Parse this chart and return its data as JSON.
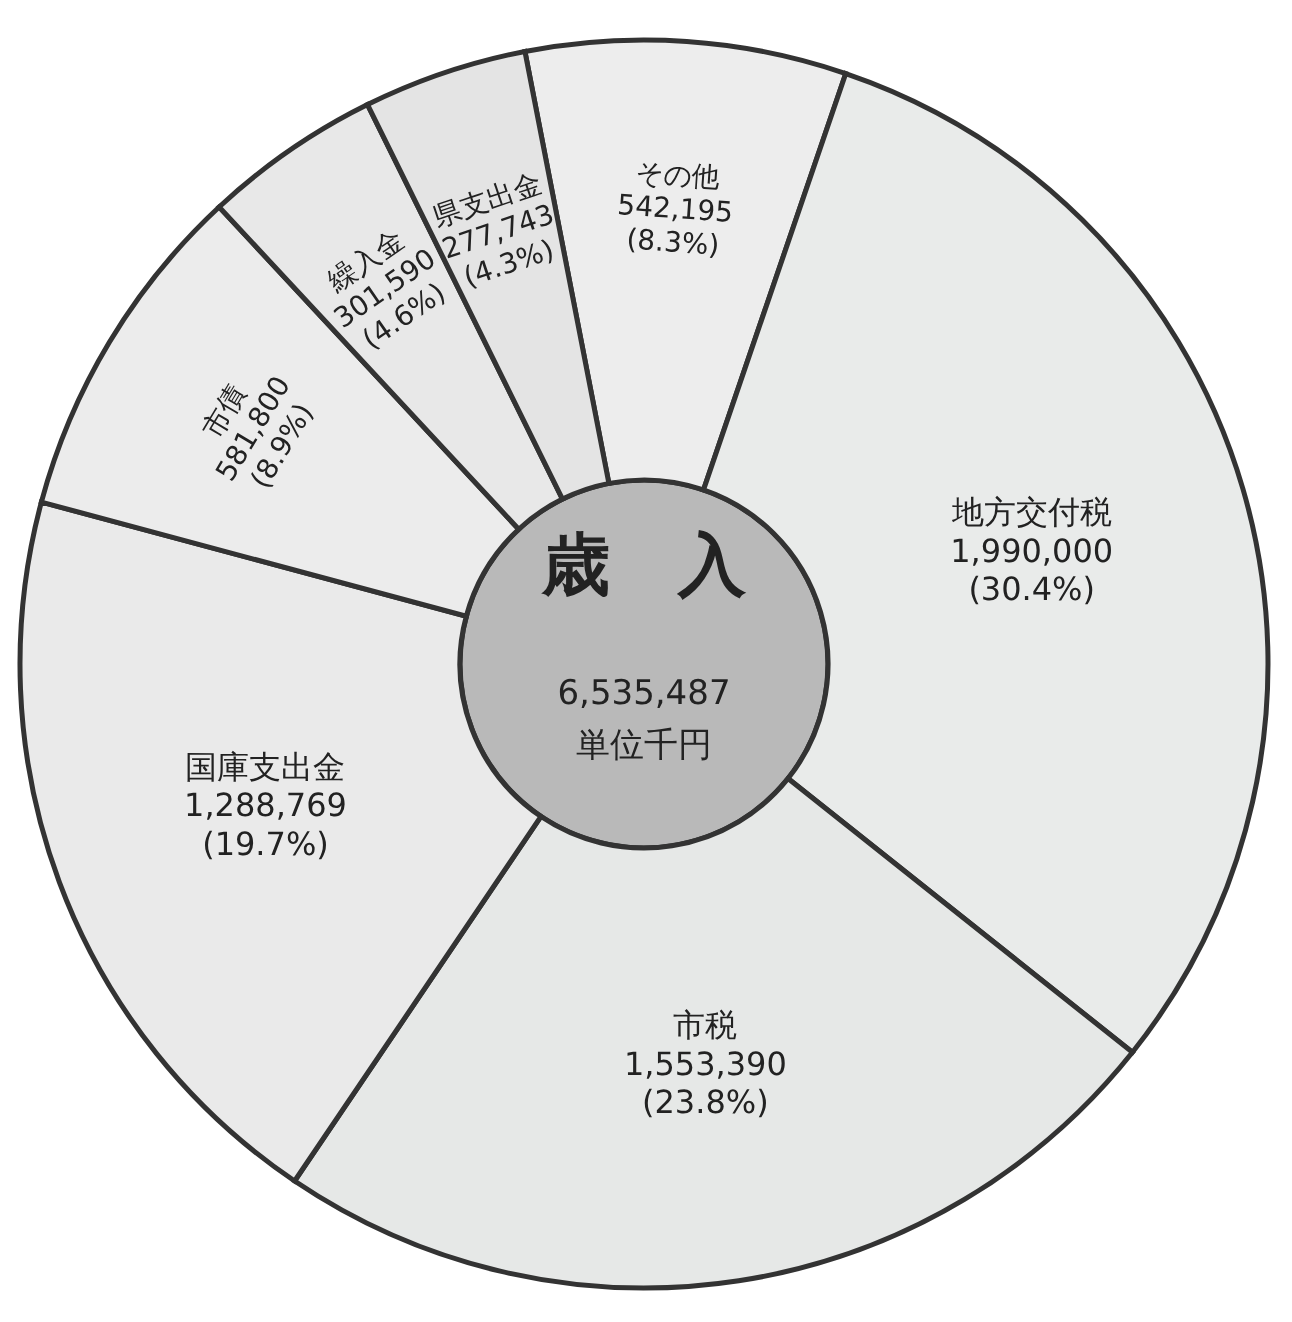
{
  "chart_data": {
    "type": "donut",
    "title": "歳　入",
    "annotations": [
      "6,535,487",
      "単位千円"
    ],
    "categories": [
      "その他",
      "地方交付税",
      "市税",
      "国庫支出金",
      "市債",
      "繰入金",
      "県支出金"
    ],
    "values": [
      542195,
      1990000,
      1553390,
      1288769,
      581800,
      301590,
      277743
    ],
    "value_labels": [
      "542,195\n(8.3%)",
      "1,990,000\n(30.4%)",
      "1,553,390\n(23.8%)",
      "1,288,769\n(19.7%)",
      "581,800\n(8.9%)",
      "301,590\n(4.6%)",
      "277,743\n(4.3%)"
    ],
    "colors": [
      "#ededed",
      "#e9ebea",
      "#e6e8e7",
      "#eaeaea",
      "#ececec",
      "#e8e8e8",
      "#e4e4e4"
    ]
  }
}
